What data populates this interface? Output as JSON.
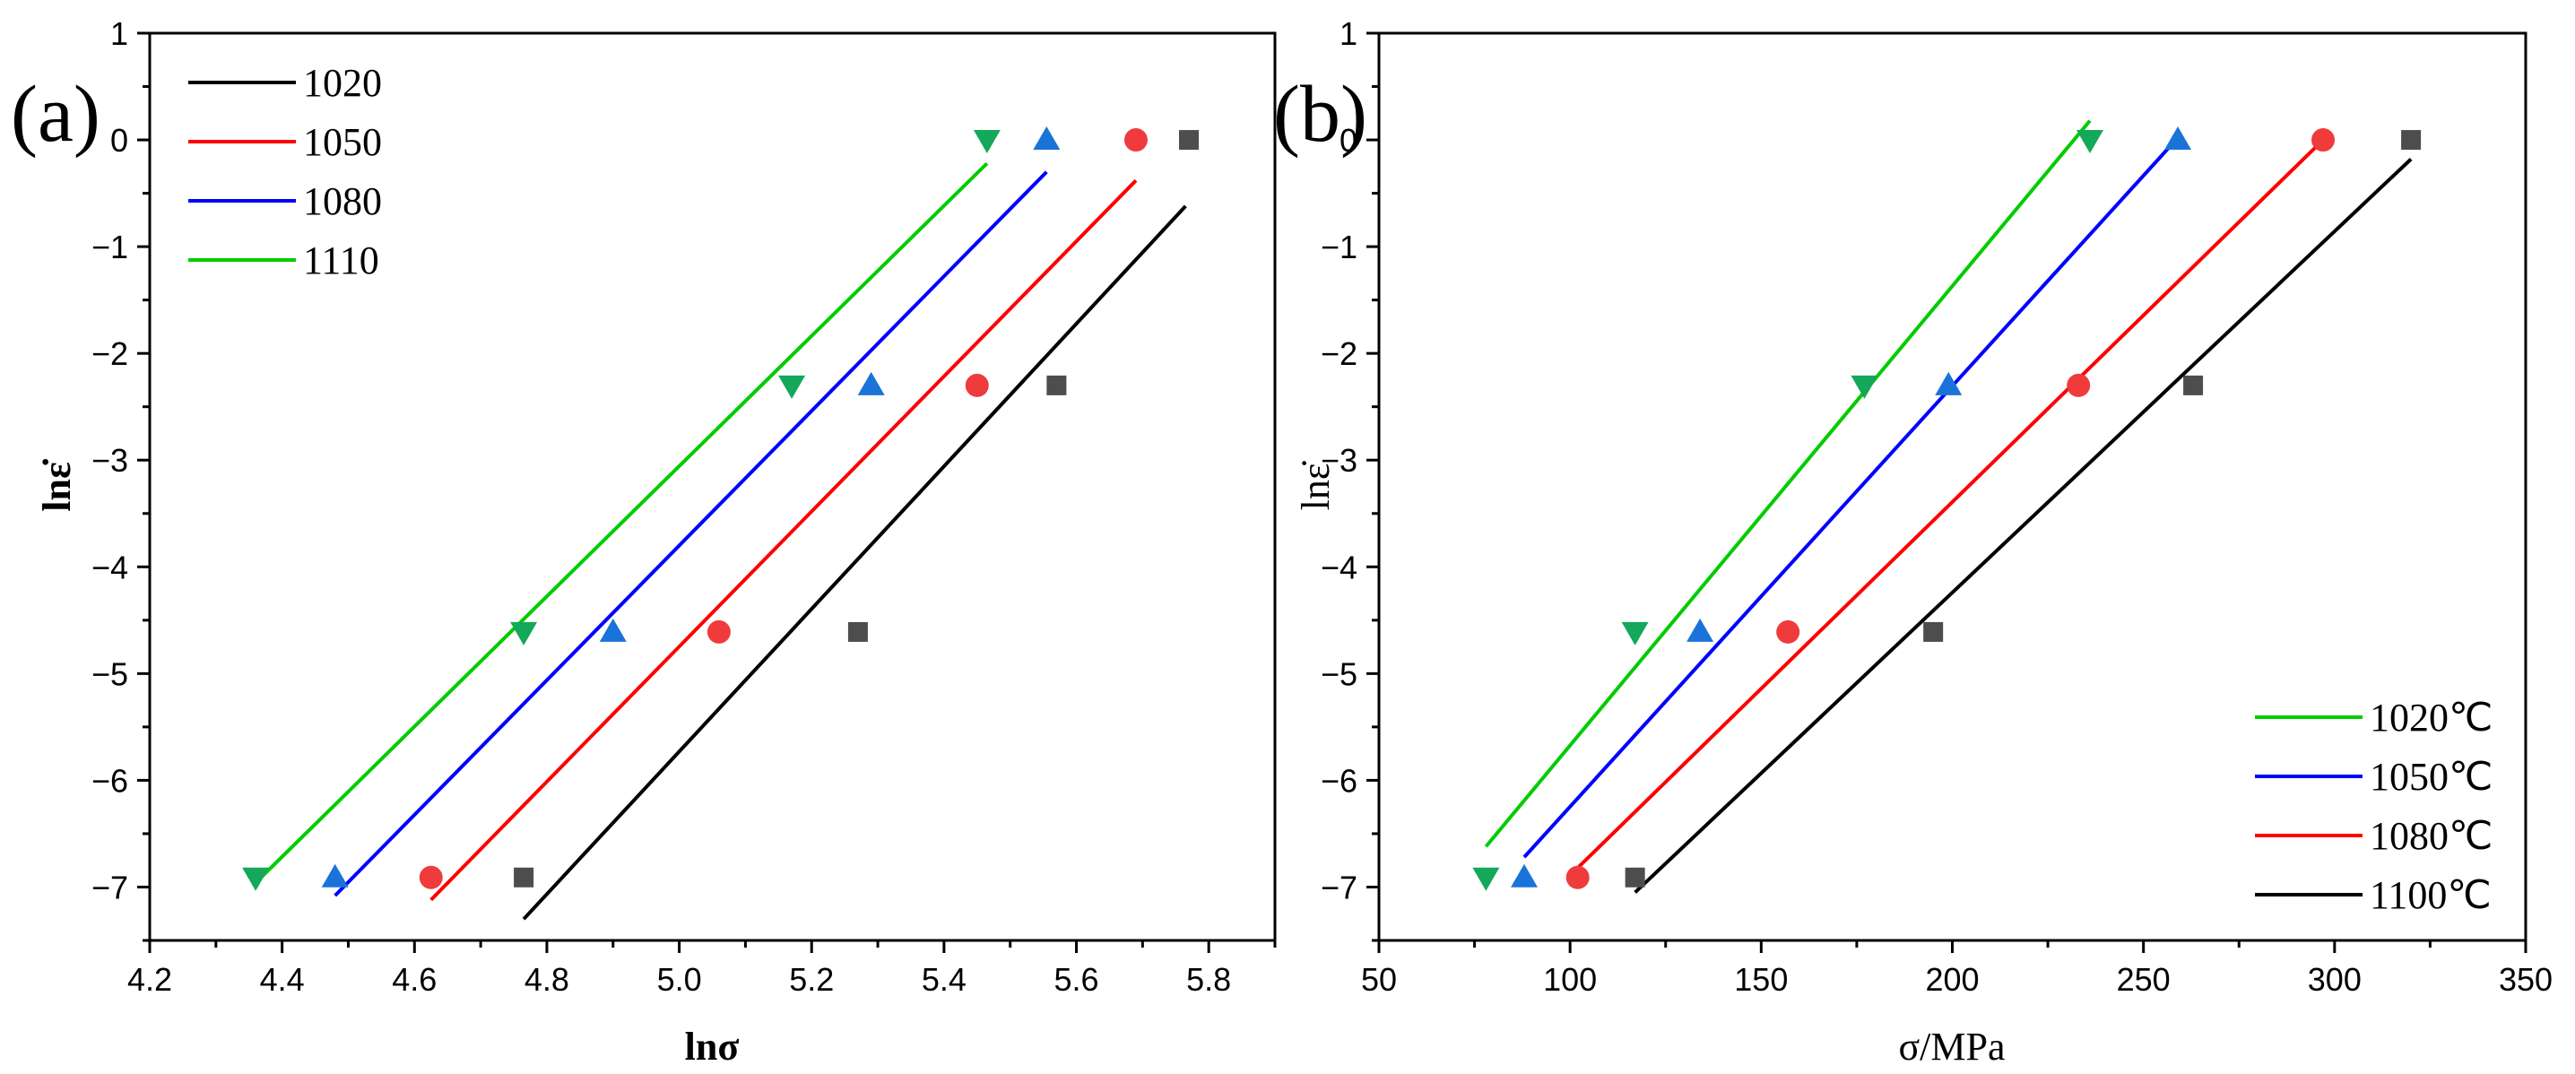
{
  "chart_data": [
    {
      "type": "scatter",
      "panel_label": "(a)",
      "xlabel": "lnσ",
      "ylabel": "lnε̇",
      "xlim": [
        4.2,
        5.9
      ],
      "ylim": [
        -7.5,
        1
      ],
      "x_ticks": [
        "4.2",
        "4.4",
        "4.6",
        "4.8",
        "5.0",
        "5.2",
        "5.4",
        "5.6",
        "5.8"
      ],
      "y_ticks": [
        "1",
        "0",
        "-1",
        "-2",
        "-3",
        "-4",
        "-5",
        "-6",
        "-7"
      ],
      "legend_position": "top-left",
      "series": [
        {
          "name": "1020",
          "color": "#000000",
          "marker_color": "#4d4d4d",
          "marker": "square",
          "points": [
            [
              4.765,
              -6.91
            ],
            [
              5.27,
              -4.61
            ],
            [
              5.57,
              -2.3
            ],
            [
              5.77,
              0
            ]
          ],
          "fit": [
            [
              4.765,
              -7.3
            ],
            [
              5.765,
              -0.62
            ]
          ]
        },
        {
          "name": "1050",
          "color": "#ff0000",
          "marker_color": "#ef3b3b",
          "marker": "circle",
          "points": [
            [
              4.625,
              -6.91
            ],
            [
              5.06,
              -4.61
            ],
            [
              5.45,
              -2.3
            ],
            [
              5.69,
              0
            ]
          ],
          "fit": [
            [
              4.625,
              -7.12
            ],
            [
              5.69,
              -0.38
            ]
          ]
        },
        {
          "name": "1080",
          "color": "#0000ff",
          "marker_color": "#1a73d9",
          "marker": "triangle-up",
          "points": [
            [
              4.48,
              -6.91
            ],
            [
              4.9,
              -4.61
            ],
            [
              5.29,
              -2.3
            ],
            [
              5.555,
              0
            ]
          ],
          "fit": [
            [
              4.48,
              -7.08
            ],
            [
              5.555,
              -0.3
            ]
          ]
        },
        {
          "name": "1110",
          "color": "#00cc00",
          "marker_color": "#13a85a",
          "marker": "triangle-down",
          "points": [
            [
              4.36,
              -6.91
            ],
            [
              4.765,
              -4.61
            ],
            [
              5.17,
              -2.3
            ],
            [
              5.465,
              0
            ]
          ],
          "fit": [
            [
              4.36,
              -6.96
            ],
            [
              5.465,
              -0.22
            ]
          ]
        }
      ]
    },
    {
      "type": "scatter",
      "panel_label": "(b)",
      "xlabel": "σ/MPa",
      "ylabel": "lnε̇",
      "xlim": [
        50,
        350
      ],
      "ylim": [
        -7.5,
        1
      ],
      "x_ticks": [
        "50",
        "100",
        "150",
        "200",
        "250",
        "300",
        "350"
      ],
      "y_ticks": [
        "1",
        "0",
        "-1",
        "-2",
        "-3",
        "-4",
        "-5",
        "-6",
        "-7"
      ],
      "legend_position": "bottom-right",
      "series": [
        {
          "name": "1020℃",
          "color": "#00cc00",
          "marker_color": "#13a85a",
          "marker": "triangle-down",
          "points": [
            [
              78,
              -6.91
            ],
            [
              117,
              -4.61
            ],
            [
              177,
              -2.3
            ],
            [
              236,
              0
            ]
          ],
          "fit": [
            [
              78,
              -6.62
            ],
            [
              236,
              0.18
            ]
          ]
        },
        {
          "name": "1050℃",
          "color": "#0000ff",
          "marker_color": "#1a73d9",
          "marker": "triangle-up",
          "points": [
            [
              88,
              -6.91
            ],
            [
              134,
              -4.61
            ],
            [
              199,
              -2.3
            ],
            [
              259,
              0
            ]
          ],
          "fit": [
            [
              88,
              -6.72
            ],
            [
              259,
              0.02
            ]
          ]
        },
        {
          "name": "1080℃",
          "color": "#ff0000",
          "marker_color": "#ef3b3b",
          "marker": "circle",
          "points": [
            [
              102,
              -6.91
            ],
            [
              157,
              -4.61
            ],
            [
              233,
              -2.3
            ],
            [
              297,
              0
            ]
          ],
          "fit": [
            [
              102,
              -6.82
            ],
            [
              297,
              0
            ]
          ]
        },
        {
          "name": "1100℃",
          "color": "#000000",
          "marker_color": "#4d4d4d",
          "marker": "square",
          "points": [
            [
              117,
              -6.91
            ],
            [
              195,
              -4.61
            ],
            [
              263,
              -2.3
            ],
            [
              320,
              0
            ]
          ],
          "fit": [
            [
              117,
              -7.05
            ],
            [
              320,
              -0.18
            ]
          ]
        }
      ]
    }
  ]
}
